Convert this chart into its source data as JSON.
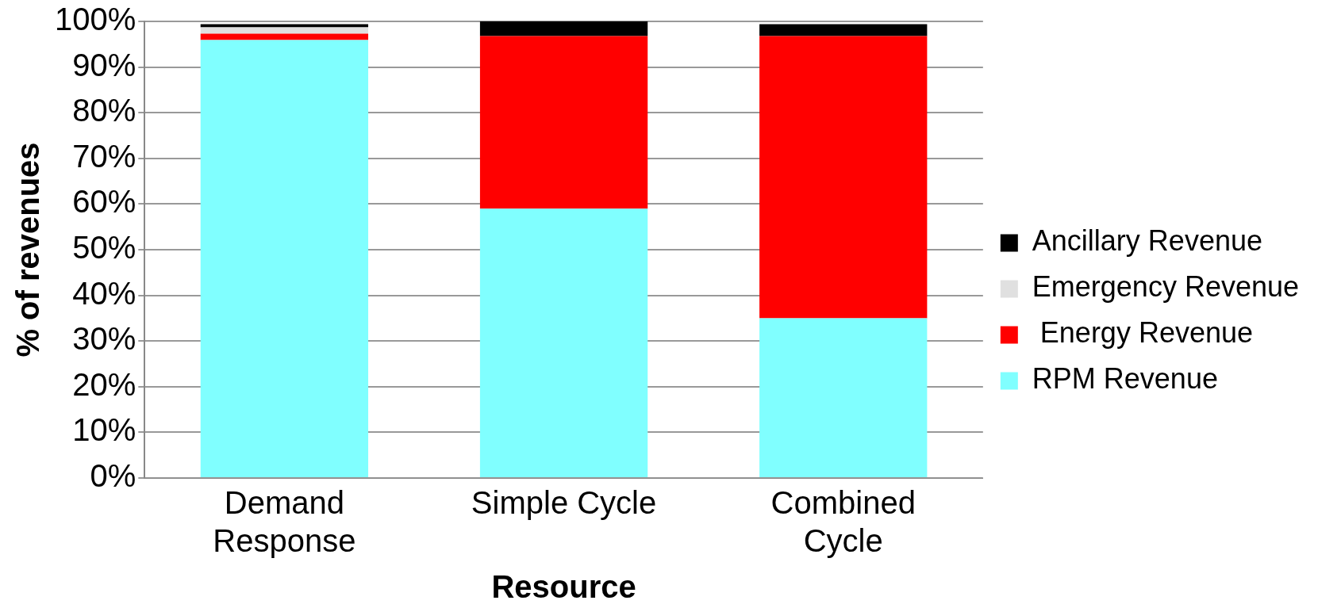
{
  "chart_data": {
    "type": "bar",
    "stacked": true,
    "xlabel": "Resource",
    "ylabel": "% of revenues",
    "categories": [
      "Demand Response",
      "Simple Cycle",
      "Combined Cycle"
    ],
    "series": [
      {
        "name": "RPM Revenue",
        "color": "#80ffff",
        "values": [
          95.9,
          59,
          35
        ]
      },
      {
        "name": " Energy Revenue",
        "color": "#ff0000",
        "values": [
          1.4,
          37.8,
          61.8
        ]
      },
      {
        "name": "Emergency Revenue",
        "color": "#e0e0e0",
        "values": [
          1.4,
          0,
          0
        ]
      },
      {
        "name": "Ancillary Revenue",
        "color": "#000000",
        "values": [
          0.7,
          3.2,
          2.6
        ]
      }
    ],
    "ylim": [
      0,
      100
    ],
    "yticks": [
      {
        "value": 0,
        "label": "0%"
      },
      {
        "value": 10,
        "label": "10%"
      },
      {
        "value": 20,
        "label": "20%"
      },
      {
        "value": 30,
        "label": "30%"
      },
      {
        "value": 40,
        "label": "40%"
      },
      {
        "value": 50,
        "label": "50%"
      },
      {
        "value": 60,
        "label": "60%"
      },
      {
        "value": 70,
        "label": "70%"
      },
      {
        "value": 80,
        "label": "80%"
      },
      {
        "value": 90,
        "label": "90%"
      },
      {
        "value": 100,
        "label": "100%"
      }
    ],
    "grid": "y",
    "legend": "right"
  }
}
